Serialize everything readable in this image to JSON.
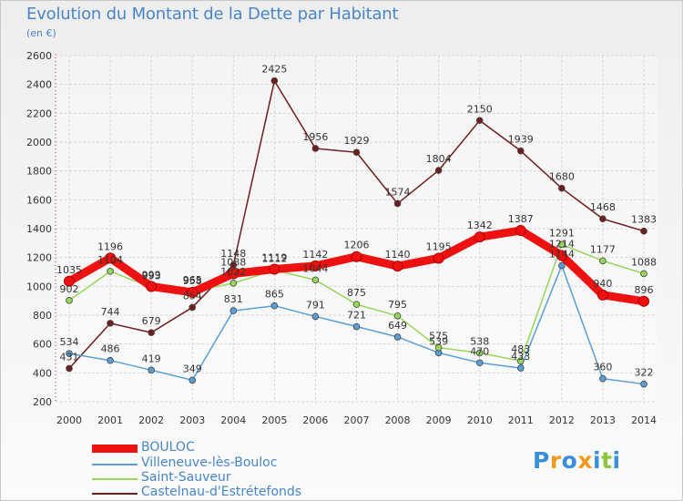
{
  "header": {
    "title": "Evolution du Montant de la Dette par Habitant",
    "subtitle": "(en €)"
  },
  "logo": {
    "letters": [
      "P",
      "r",
      "o",
      "x",
      "i",
      "t",
      "i"
    ],
    "colors": [
      "#3a8fd8",
      "#f39a1e",
      "#3a8fd8",
      "#f39a1e",
      "#3a8fd8",
      "#8cc63f",
      "#3a8fd8"
    ]
  },
  "chart_data": {
    "type": "line",
    "categories": [
      "2000",
      "2001",
      "2002",
      "2003",
      "2004",
      "2005",
      "2006",
      "2007",
      "2008",
      "2009",
      "2010",
      "2011",
      "2012",
      "2013",
      "2014"
    ],
    "ylim": [
      200,
      2600
    ],
    "yticks": [
      "200",
      "400",
      "600",
      "800",
      "1000",
      "1200",
      "1400",
      "1600",
      "1800",
      "2000",
      "2200",
      "2400",
      "2600"
    ],
    "grid": true,
    "legend_position": "bottom-left",
    "series": [
      {
        "name": "Castelnau-d'Estrétefonds",
        "color": "#6e1e1e",
        "values": [
          431,
          744,
          679,
          854,
          1148,
          2425,
          1956,
          1929,
          1574,
          1804,
          2150,
          1939,
          1680,
          1468,
          1383
        ]
      },
      {
        "name": "Villeneuve-lès-Bouloc",
        "color": "#5b9ed6",
        "values": [
          534,
          486,
          419,
          349,
          831,
          865,
          791,
          721,
          649,
          539,
          470,
          433,
          1144,
          360,
          322
        ]
      },
      {
        "name": "Saint-Sauveur",
        "color": "#97d65a",
        "values": [
          902,
          1104,
          993,
          965,
          1022,
          1112,
          1044,
          875,
          795,
          575,
          538,
          483,
          1291,
          1177,
          1088
        ]
      },
      {
        "name": "BOULOC",
        "color": "#ee1111",
        "values": [
          1035,
          1196,
          999,
          958,
          1088,
          1119,
          1142,
          1206,
          1140,
          1195,
          1342,
          1387,
          1214,
          940,
          896
        ]
      }
    ]
  }
}
